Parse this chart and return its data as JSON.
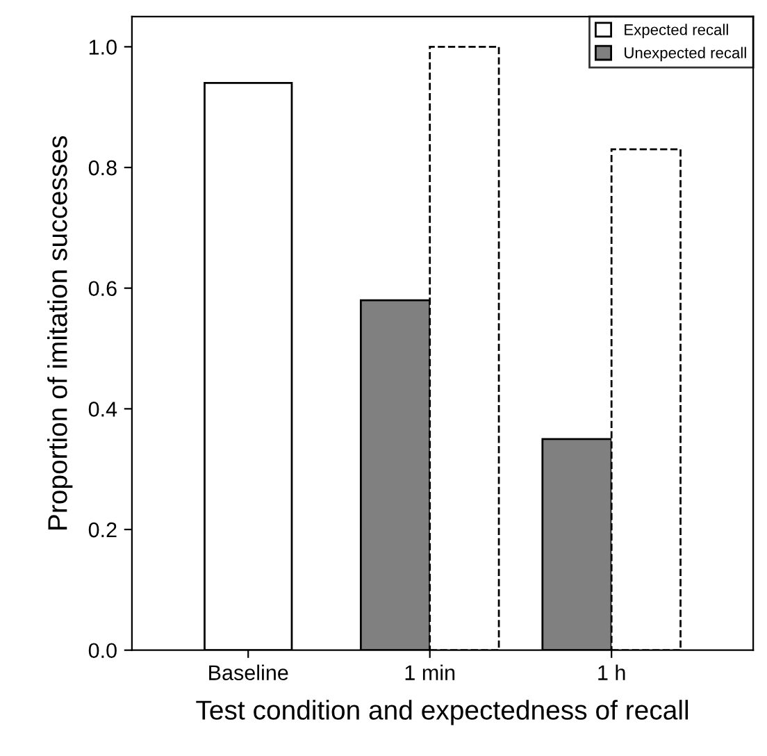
{
  "chart_data": {
    "type": "bar",
    "xlabel": "Test condition and expectedness of recall",
    "ylabel": "Proportion of imitation successes",
    "categories": [
      "Baseline",
      "1 min",
      "1 h"
    ],
    "series": [
      {
        "color": "#ffffff",
        "values": [
          0.94,
          null,
          null
        ]
      },
      {
        "name": "Unexpected recall",
        "color": "#808080",
        "values": [
          null,
          0.58,
          0.35
        ]
      },
      {
        "name": "Expected recall",
        "color": "#ffffff",
        "values": [
          null,
          1.0,
          0.83
        ],
        "line_style": "dashed"
      }
    ],
    "ylim": [
      0,
      1.05
    ],
    "yticks": [
      {
        "value": 0,
        "label": "0.0"
      },
      0.2,
      0.4,
      0.6,
      0.8,
      {
        "value": 1,
        "label": "1.0"
      }
    ],
    "legend": "top right",
    "grid": false
  }
}
